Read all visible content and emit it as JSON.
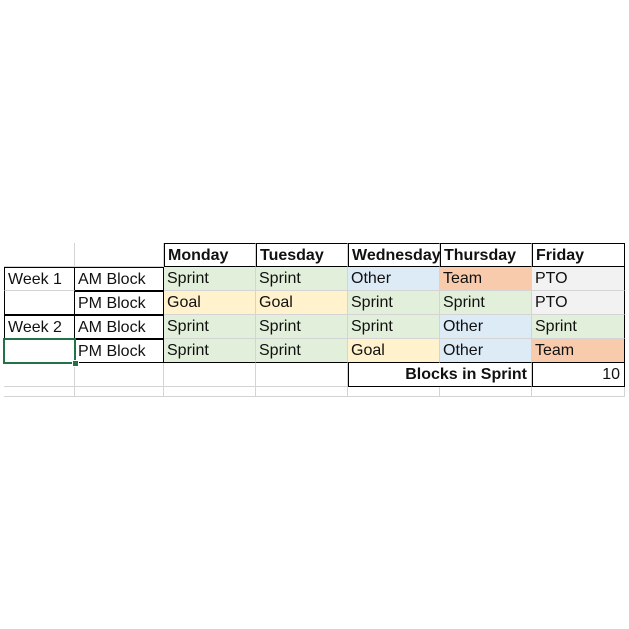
{
  "colors": {
    "sprint": "#e2efda",
    "goal": "#fff2cc",
    "other": "#ddebf7",
    "team": "#f8cbad",
    "pto": "#f2f2f2",
    "selection": "#217346"
  },
  "headers": {
    "monday": "Monday",
    "tuesday": "Tuesday",
    "wednesday": "Wednesday",
    "thursday": "Thursday",
    "friday": "Friday"
  },
  "rows": [
    {
      "week": "Week 1",
      "block": "AM Block",
      "cells": [
        {
          "text": "Sprint",
          "kind": "sprint"
        },
        {
          "text": "Sprint",
          "kind": "sprint"
        },
        {
          "text": "Other",
          "kind": "other"
        },
        {
          "text": "Team",
          "kind": "team"
        },
        {
          "text": "PTO",
          "kind": "pto"
        }
      ]
    },
    {
      "week": "",
      "block": "PM Block",
      "cells": [
        {
          "text": "Goal",
          "kind": "goal"
        },
        {
          "text": "Goal",
          "kind": "goal"
        },
        {
          "text": "Sprint",
          "kind": "sprint"
        },
        {
          "text": "Sprint",
          "kind": "sprint"
        },
        {
          "text": "PTO",
          "kind": "pto"
        }
      ]
    },
    {
      "week": "Week 2",
      "block": "AM Block",
      "cells": [
        {
          "text": "Sprint",
          "kind": "sprint"
        },
        {
          "text": "Sprint",
          "kind": "sprint"
        },
        {
          "text": "Sprint",
          "kind": "sprint"
        },
        {
          "text": "Other",
          "kind": "other"
        },
        {
          "text": "Sprint",
          "kind": "sprint"
        }
      ]
    },
    {
      "week": "",
      "block": "PM Block",
      "cells": [
        {
          "text": "Sprint",
          "kind": "sprint"
        },
        {
          "text": "Sprint",
          "kind": "sprint"
        },
        {
          "text": "Goal",
          "kind": "goal"
        },
        {
          "text": "Other",
          "kind": "other"
        },
        {
          "text": "Team",
          "kind": "team"
        }
      ]
    }
  ],
  "summary": {
    "label": "Blocks in Sprint",
    "value": "10"
  }
}
